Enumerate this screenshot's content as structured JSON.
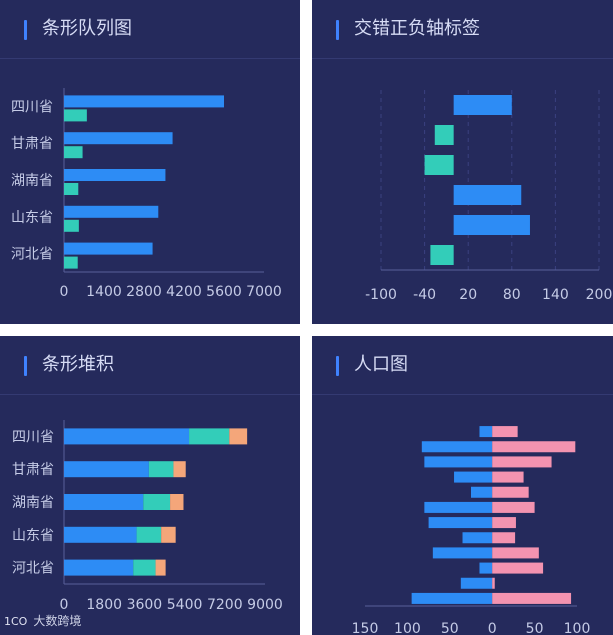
{
  "panels": [
    {
      "title": "条形队列图"
    },
    {
      "title": "交错正负轴标签"
    },
    {
      "title": "条形堆积"
    },
    {
      "title": "人口图"
    }
  ],
  "watermark": {
    "logo": "1CO",
    "text": "大数跨境"
  },
  "colors": {
    "blue": "#2d8cf5",
    "teal": "#33cdb9",
    "orange": "#f4a67a",
    "pink": "#f393b0",
    "axis": "#59609a",
    "label": "#c5cbe6"
  },
  "chart_data": [
    {
      "type": "bar",
      "title": "条形队列图",
      "orientation": "horizontal",
      "categories": [
        "四川省",
        "甘肃省",
        "湖南省",
        "山东省",
        "河北省"
      ],
      "series": [
        {
          "values": [
            5600,
            3800,
            3550,
            3300,
            3100
          ]
        },
        {
          "values": [
            800,
            650,
            500,
            520,
            480
          ]
        }
      ],
      "xticks": [
        "0",
        "1400",
        "2800",
        "4200",
        "5600",
        "7000"
      ],
      "xlim": [
        0,
        7000
      ]
    },
    {
      "type": "bar",
      "title": "交错正负轴标签",
      "orientation": "horizontal",
      "values": [
        80,
        -26,
        -40,
        93,
        105,
        -32
      ],
      "xticks": [
        "-100",
        "-40",
        "20",
        "80",
        "140",
        "200"
      ],
      "xlim": [
        -100,
        200
      ]
    },
    {
      "type": "bar",
      "title": "条形堆积",
      "orientation": "horizontal",
      "stacked": true,
      "categories": [
        "四川省",
        "甘肃省",
        "湖南省",
        "山东省",
        "河北省"
      ],
      "series": [
        {
          "values": [
            5600,
            3800,
            3550,
            3250,
            3100
          ]
        },
        {
          "values": [
            1800,
            1100,
            1200,
            1100,
            1000
          ]
        },
        {
          "values": [
            800,
            550,
            600,
            650,
            450
          ]
        }
      ],
      "xticks": [
        "0",
        "1800",
        "3600",
        "5400",
        "7200",
        "9000"
      ],
      "xlim": [
        0,
        9000
      ]
    },
    {
      "type": "bar",
      "title": "人口图",
      "orientation": "horizontal",
      "diverging": true,
      "series": [
        {
          "values": [
            -15,
            -83,
            -80,
            -45,
            -25,
            -80,
            -75,
            -35,
            -70,
            -15,
            -37,
            -95
          ]
        },
        {
          "values": [
            30,
            98,
            70,
            37,
            43,
            50,
            28,
            27,
            55,
            60,
            3,
            93
          ]
        }
      ],
      "xticks": [
        "150",
        "100",
        "50",
        "0",
        "50",
        "100"
      ],
      "xlim": [
        -150,
        100
      ]
    }
  ]
}
